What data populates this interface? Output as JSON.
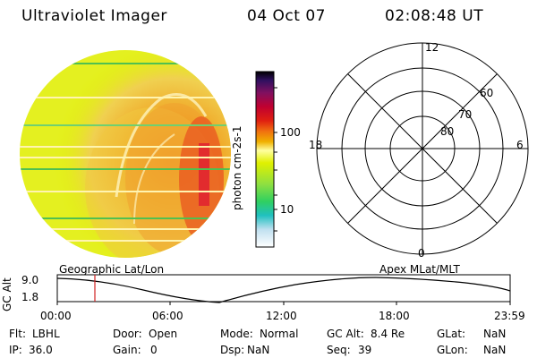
{
  "header": {
    "instrument": "Ultraviolet Imager",
    "date": "04 Oct 07",
    "time": "02:08:48 UT"
  },
  "colorbar": {
    "unit_label": "photon cm-2s-1",
    "tick_labels": [
      "100",
      "10"
    ],
    "colors": [
      "#000000",
      "#301060",
      "#801060",
      "#c00030",
      "#e02010",
      "#f07010",
      "#f0b000",
      "#ffffa0",
      "#e0f000",
      "#90e040",
      "#30d060",
      "#20c0c0",
      "#c0e0f0",
      "#ffffff"
    ]
  },
  "polar_grid": {
    "mlt_labels": {
      "top": "12",
      "left": "18",
      "right": "6",
      "bottom": "0"
    },
    "lat_labels": [
      "60",
      "70",
      "80"
    ]
  },
  "timeline": {
    "left_caption": "Geographic Lat/Lon",
    "right_caption": "Apex MLat/MLT",
    "axis_title": "GC Alt",
    "y_ticks": [
      "9.0",
      "1.8"
    ],
    "x_ticks": [
      "00:00",
      "06:00",
      "12:00",
      "18:00",
      "23:59"
    ],
    "current_time_marker": "02:08:48",
    "marker_color": "#d02020"
  },
  "status": {
    "row1": {
      "flt_label": "Flt:",
      "flt_value": "LBHL",
      "door_label": "Door:",
      "door_value": "Open",
      "mode_label": "Mode:",
      "mode_value": "Normal",
      "alt_label": "GC Alt:",
      "alt_value": "8.4 Re",
      "glat_label": "GLat:",
      "glat_value": "NaN"
    },
    "row2": {
      "ip_label": "IP:",
      "ip_value": "36.0",
      "gain_label": "Gain:",
      "gain_value": "0",
      "dsp_label": "Dsp:",
      "dsp_value": "NaN",
      "seq_label": "Seq:",
      "seq_value": "39",
      "glon_label": "GLon:",
      "glon_value": "NaN"
    }
  }
}
